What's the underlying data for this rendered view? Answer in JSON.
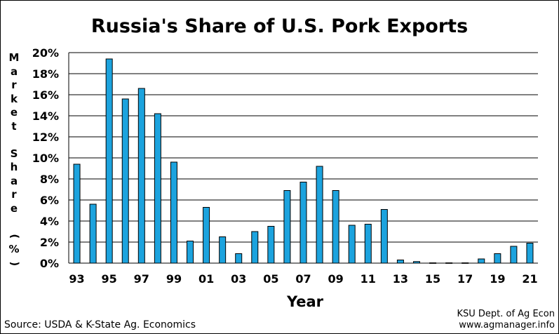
{
  "chart_data": {
    "type": "bar",
    "title": "Russia's Share of U.S. Pork Exports",
    "xlabel": "Year",
    "ylabel": "Market Share (%)",
    "categories": [
      "93",
      "94",
      "95",
      "96",
      "97",
      "98",
      "99",
      "00",
      "01",
      "02",
      "03",
      "04",
      "05",
      "06",
      "07",
      "08",
      "09",
      "10",
      "11",
      "12",
      "13",
      "14",
      "15",
      "16",
      "17",
      "18",
      "19",
      "20",
      "21"
    ],
    "x_tick_labels": [
      "93",
      "95",
      "97",
      "99",
      "01",
      "03",
      "05",
      "07",
      "09",
      "11",
      "13",
      "15",
      "17",
      "19",
      "21"
    ],
    "values": [
      9.4,
      5.6,
      19.4,
      15.6,
      16.6,
      14.2,
      9.6,
      2.1,
      5.3,
      2.5,
      0.9,
      3.0,
      3.5,
      6.9,
      7.7,
      9.2,
      6.9,
      3.6,
      3.7,
      5.1,
      0.3,
      0.15,
      0.03,
      0.03,
      0.03,
      0.4,
      0.9,
      1.6,
      1.9
    ],
    "ylim": [
      0,
      20
    ],
    "y_tick_labels": [
      "0%",
      "2%",
      "4%",
      "6%",
      "8%",
      "10%",
      "12%",
      "14%",
      "16%",
      "18%",
      "20%"
    ],
    "grid": true,
    "colors": {
      "bar": "#1CA3DE",
      "bar_edge": "#000000",
      "grid": "#000000"
    }
  },
  "footer": {
    "source": "Source:  USDA & K-State Ag. Economics",
    "credit_line1": "KSU Dept. of Ag Econ",
    "credit_line2": "www.agmanager.info"
  }
}
